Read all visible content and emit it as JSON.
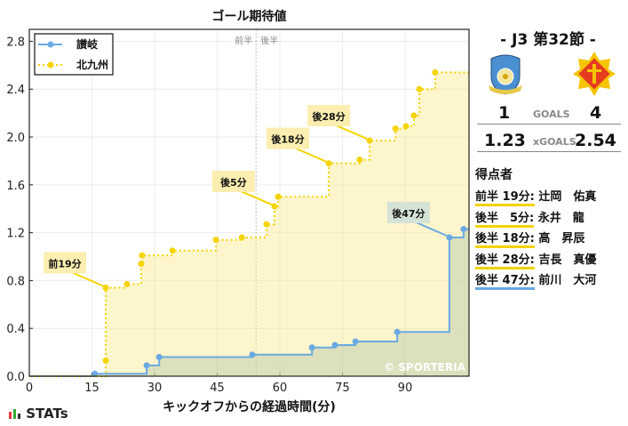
{
  "chart_data": {
    "type": "line",
    "title": "ゴール期待値",
    "xlabel": "キックオフからの経過時間(分)",
    "ylabel": "",
    "xlim": [
      0,
      105.3
    ],
    "ylim": [
      0,
      2.9
    ],
    "xticks": [
      0,
      15,
      30,
      45,
      60,
      75,
      90
    ],
    "yticks": [
      "0.0",
      "0.4",
      "0.8",
      "1.2",
      "1.6",
      "2.0",
      "2.4",
      "2.8"
    ],
    "grid": true,
    "legend": "top-left",
    "half_line": {
      "x": 54.3,
      "labels": [
        "前半",
        "後半"
      ]
    },
    "watermark": "© SPORTERIA",
    "series": [
      {
        "name": "讃岐",
        "color": "#6aa9e3",
        "style": "solid",
        "points": [
          [
            15.7,
            0.02
          ],
          [
            28.1,
            0.09
          ],
          [
            31.1,
            0.16
          ],
          [
            53.4,
            0.18
          ],
          [
            67.7,
            0.24
          ],
          [
            73.2,
            0.26
          ],
          [
            78.1,
            0.29
          ],
          [
            88.1,
            0.37
          ],
          [
            100.6,
            1.16
          ],
          [
            104.0,
            1.23
          ]
        ],
        "end": 1.23,
        "goals": [
          {
            "label": "後47分",
            "x": 100.6,
            "y": 1.16
          }
        ]
      },
      {
        "name": "北九州",
        "color": "#f5d400",
        "style": "dotted",
        "points": [
          [
            18.3,
            0.13
          ],
          [
            18.3,
            0.74
          ],
          [
            23.4,
            0.77
          ],
          [
            26.8,
            0.94
          ],
          [
            27.0,
            1.01
          ],
          [
            34.3,
            1.05
          ],
          [
            44.7,
            1.14
          ],
          [
            50.9,
            1.16
          ],
          [
            56.8,
            1.27
          ],
          [
            58.7,
            1.42
          ],
          [
            59.6,
            1.5
          ],
          [
            71.7,
            1.78
          ],
          [
            79.1,
            1.81
          ],
          [
            81.5,
            1.97
          ],
          [
            87.7,
            2.07
          ],
          [
            90.2,
            2.09
          ],
          [
            92.1,
            2.18
          ],
          [
            93.4,
            2.4
          ],
          [
            97.2,
            2.54
          ]
        ],
        "end": 2.54,
        "goals": [
          {
            "label": "前19分",
            "x": 18.3,
            "y": 0.74
          },
          {
            "label": "後5分",
            "x": 58.7,
            "y": 1.42
          },
          {
            "label": "後18分",
            "x": 71.7,
            "y": 1.78
          },
          {
            "label": "後28分",
            "x": 81.5,
            "y": 1.97
          }
        ]
      }
    ]
  },
  "match": {
    "title": "-  J3 第32節  -",
    "home_goals": "1",
    "away_goals": "4",
    "goals_label": "GOALS",
    "home_xg": "1.23",
    "away_xg": "2.54",
    "xg_label": "xGOALS",
    "home_color": "#6aa9e3",
    "away_color": "#f3d200"
  },
  "scorers": {
    "title": "得点者",
    "items": [
      {
        "time": "前半 19分:",
        "name": " 辻岡　佑真",
        "team": "away"
      },
      {
        "time": "後半　5分:",
        "name": " 永井　龍",
        "team": "away"
      },
      {
        "time": "後半 18分:",
        "name": " 高　昇辰",
        "team": "away"
      },
      {
        "time": "後半 28分:",
        "name": " 吉長　真優",
        "team": "away"
      },
      {
        "time": "後半 47分:",
        "name": " 前川　大河",
        "team": "home"
      }
    ]
  },
  "footer": {
    "brand": "STATs"
  }
}
